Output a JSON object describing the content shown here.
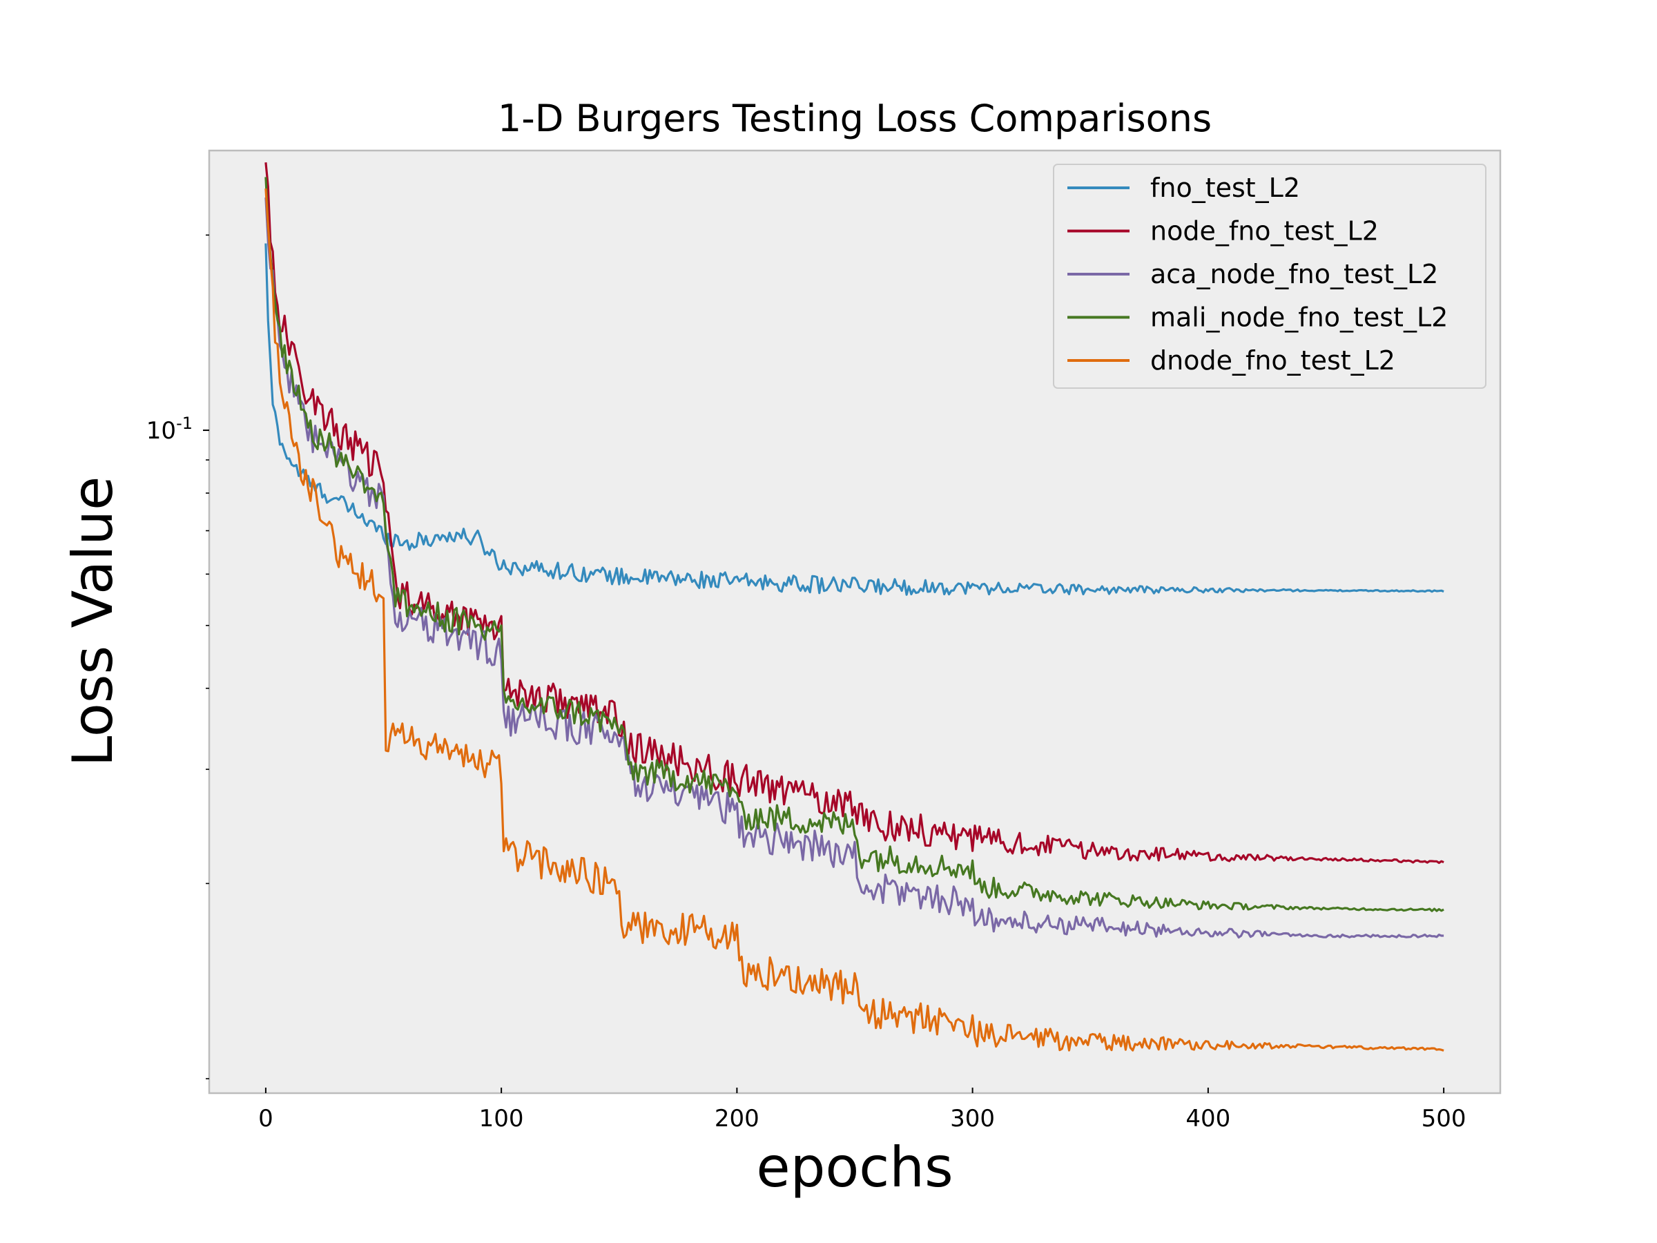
{
  "chart_data": {
    "type": "line",
    "title": "1-D Burgers Testing Loss Comparisons",
    "xlabel": "epochs",
    "ylabel": "Loss Value",
    "y_scale": "log",
    "xlim": [
      -24,
      524
    ],
    "ylim": [
      0.0095,
      0.27
    ],
    "x_ticks": [
      0,
      100,
      200,
      300,
      400,
      500
    ],
    "x_tick_labels": [
      "0",
      "100",
      "200",
      "300",
      "400",
      "500"
    ],
    "y_major_ticks": [
      0.1
    ],
    "y_major_tick_labels": [
      "10^-1"
    ],
    "y_minor_ticks": [
      0.01,
      0.02,
      0.03,
      0.04,
      0.05,
      0.06,
      0.07,
      0.08,
      0.09,
      0.2
    ],
    "grid": false,
    "legend_position": "top-right",
    "background": "#eeeeee",
    "series": [
      {
        "name": "fno_test_L2",
        "color": "#348abd",
        "points": [
          [
            0,
            0.19
          ],
          [
            1,
            0.15
          ],
          [
            2,
            0.125
          ],
          [
            3,
            0.11
          ],
          [
            5,
            0.1
          ],
          [
            8,
            0.093
          ],
          [
            12,
            0.088
          ],
          [
            20,
            0.082
          ],
          [
            30,
            0.078
          ],
          [
            40,
            0.074
          ],
          [
            50,
            0.069
          ],
          [
            60,
            0.067
          ],
          [
            70,
            0.068
          ],
          [
            80,
            0.069
          ],
          [
            90,
            0.068
          ],
          [
            100,
            0.062
          ],
          [
            120,
            0.061
          ],
          [
            150,
            0.0595
          ],
          [
            200,
            0.0585
          ],
          [
            250,
            0.0575
          ],
          [
            300,
            0.0572
          ],
          [
            350,
            0.0568
          ],
          [
            400,
            0.0567
          ],
          [
            450,
            0.0566
          ],
          [
            500,
            0.0565
          ]
        ],
        "noise": 0.03
      },
      {
        "name": "node_fno_test_L2",
        "color": "#a60628",
        "points": [
          [
            0,
            0.27
          ],
          [
            1,
            0.23
          ],
          [
            2,
            0.2
          ],
          [
            4,
            0.17
          ],
          [
            6,
            0.15
          ],
          [
            10,
            0.135
          ],
          [
            15,
            0.12
          ],
          [
            20,
            0.112
          ],
          [
            25,
            0.105
          ],
          [
            30,
            0.1
          ],
          [
            40,
            0.093
          ],
          [
            50,
            0.085
          ],
          [
            55,
            0.057
          ],
          [
            70,
            0.053
          ],
          [
            80,
            0.052
          ],
          [
            90,
            0.051
          ],
          [
            100,
            0.05
          ],
          [
            101,
            0.04
          ],
          [
            130,
            0.038
          ],
          [
            150,
            0.036
          ],
          [
            155,
            0.0325
          ],
          [
            180,
            0.0305
          ],
          [
            200,
            0.029
          ],
          [
            225,
            0.0275
          ],
          [
            250,
            0.0265
          ],
          [
            255,
            0.025
          ],
          [
            300,
            0.0235
          ],
          [
            350,
            0.0225
          ],
          [
            400,
            0.022
          ],
          [
            450,
            0.0218
          ],
          [
            500,
            0.0216
          ]
        ],
        "noise": 0.06
      },
      {
        "name": "aca_node_fno_test_L2",
        "color": "#7a68a6",
        "points": [
          [
            0,
            0.23
          ],
          [
            1,
            0.2
          ],
          [
            3,
            0.17
          ],
          [
            6,
            0.14
          ],
          [
            10,
            0.12
          ],
          [
            15,
            0.105
          ],
          [
            20,
            0.097
          ],
          [
            30,
            0.09
          ],
          [
            40,
            0.083
          ],
          [
            50,
            0.077
          ],
          [
            55,
            0.052
          ],
          [
            75,
            0.049
          ],
          [
            90,
            0.047
          ],
          [
            100,
            0.045
          ],
          [
            101,
            0.036
          ],
          [
            130,
            0.035
          ],
          [
            150,
            0.034
          ],
          [
            155,
            0.029
          ],
          [
            180,
            0.027
          ],
          [
            200,
            0.026
          ],
          [
            201,
            0.024
          ],
          [
            230,
            0.023
          ],
          [
            250,
            0.022
          ],
          [
            252,
            0.0198
          ],
          [
            280,
            0.0192
          ],
          [
            300,
            0.0186
          ],
          [
            302,
            0.0176
          ],
          [
            350,
            0.0172
          ],
          [
            400,
            0.0168
          ],
          [
            450,
            0.0166
          ],
          [
            500,
            0.0166
          ]
        ],
        "noise": 0.06
      },
      {
        "name": "mali_node_fno_test_L2",
        "color": "#467821",
        "points": [
          [
            0,
            0.24
          ],
          [
            1,
            0.2
          ],
          [
            3,
            0.165
          ],
          [
            6,
            0.14
          ],
          [
            10,
            0.125
          ],
          [
            15,
            0.11
          ],
          [
            20,
            0.1
          ],
          [
            30,
            0.092
          ],
          [
            40,
            0.085
          ],
          [
            50,
            0.078
          ],
          [
            55,
            0.055
          ],
          [
            70,
            0.052
          ],
          [
            90,
            0.05
          ],
          [
            100,
            0.048
          ],
          [
            101,
            0.038
          ],
          [
            130,
            0.037
          ],
          [
            150,
            0.035
          ],
          [
            155,
            0.03
          ],
          [
            180,
            0.029
          ],
          [
            200,
            0.028
          ],
          [
            201,
            0.0255
          ],
          [
            230,
            0.025
          ],
          [
            250,
            0.0245
          ],
          [
            252,
            0.0222
          ],
          [
            280,
            0.0215
          ],
          [
            300,
            0.021
          ],
          [
            302,
            0.0198
          ],
          [
            350,
            0.019
          ],
          [
            400,
            0.0185
          ],
          [
            450,
            0.0183
          ],
          [
            500,
            0.0182
          ]
        ],
        "noise": 0.05
      },
      {
        "name": "dnode_fno_test_L2",
        "color": "#e06c0e",
        "points": [
          [
            0,
            0.25
          ],
          [
            1,
            0.21
          ],
          [
            2,
            0.175
          ],
          [
            4,
            0.145
          ],
          [
            6,
            0.12
          ],
          [
            10,
            0.1
          ],
          [
            15,
            0.088
          ],
          [
            20,
            0.08
          ],
          [
            25,
            0.072
          ],
          [
            30,
            0.066
          ],
          [
            40,
            0.06
          ],
          [
            50,
            0.056
          ],
          [
            51,
            0.034
          ],
          [
            70,
            0.0325
          ],
          [
            90,
            0.031
          ],
          [
            100,
            0.03
          ],
          [
            101,
            0.0225
          ],
          [
            120,
            0.0215
          ],
          [
            140,
            0.0205
          ],
          [
            150,
            0.02
          ],
          [
            151,
            0.0172
          ],
          [
            180,
            0.017
          ],
          [
            200,
            0.0165
          ],
          [
            201,
            0.0148
          ],
          [
            230,
            0.0142
          ],
          [
            250,
            0.0138
          ],
          [
            252,
            0.0127
          ],
          [
            280,
            0.0124
          ],
          [
            300,
            0.0121
          ],
          [
            302,
            0.0117
          ],
          [
            350,
            0.0114
          ],
          [
            400,
            0.0113
          ],
          [
            450,
            0.0112
          ],
          [
            500,
            0.0111
          ]
        ],
        "noise": 0.06
      }
    ]
  }
}
